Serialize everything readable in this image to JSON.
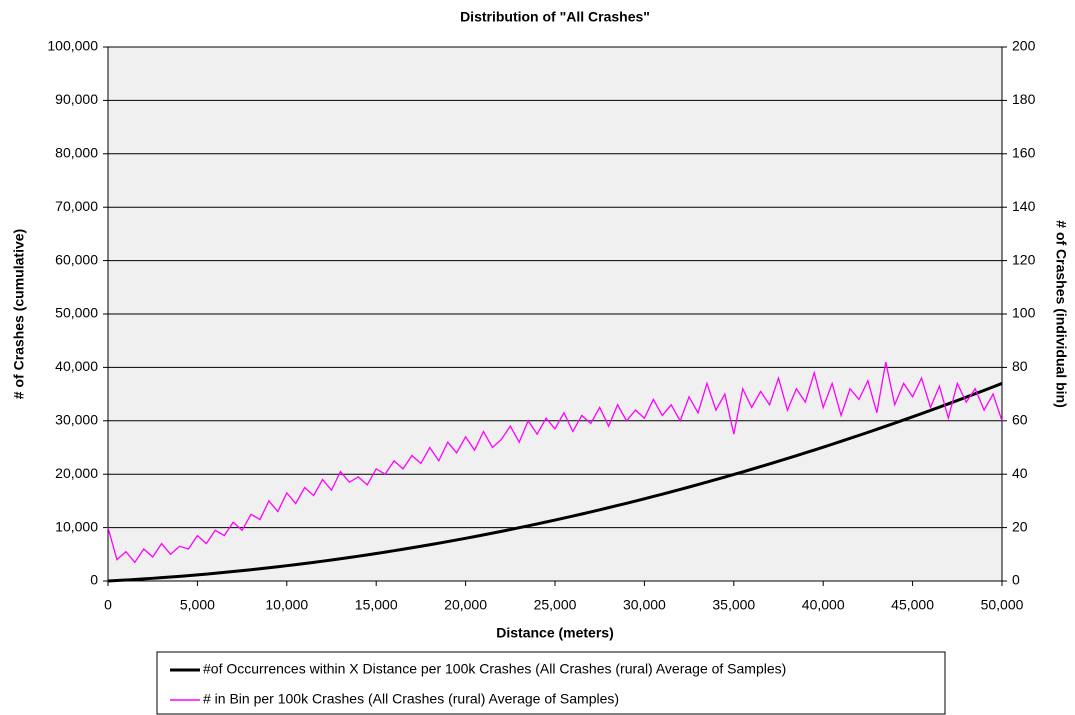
{
  "chart_data": {
    "type": "line",
    "title": "Distribution of \"All Crashes\"",
    "xlabel": "Distance (meters)",
    "ylabel": "# of Crashes (cumulative)",
    "y2label": "# of Crashes (individual bin)",
    "x": [
      0,
      500,
      1000,
      1500,
      2000,
      2500,
      3000,
      3500,
      4000,
      4500,
      5000,
      5500,
      6000,
      6500,
      7000,
      7500,
      8000,
      8500,
      9000,
      9500,
      10000,
      10500,
      11000,
      11500,
      12000,
      12500,
      13000,
      13500,
      14000,
      14500,
      15000,
      15500,
      16000,
      16500,
      17000,
      17500,
      18000,
      18500,
      19000,
      19500,
      20000,
      20500,
      21000,
      21500,
      22000,
      22500,
      23000,
      23500,
      24000,
      24500,
      25000,
      25500,
      26000,
      26500,
      27000,
      27500,
      28000,
      28500,
      29000,
      29500,
      30000,
      30500,
      31000,
      31500,
      32000,
      32500,
      33000,
      33500,
      34000,
      34500,
      35000,
      35500,
      36000,
      36500,
      37000,
      37500,
      38000,
      38500,
      39000,
      39500,
      40000,
      40500,
      41000,
      41500,
      42000,
      42500,
      43000,
      43500,
      44000,
      44500,
      45000,
      45500,
      46000,
      46500,
      47000,
      47500,
      48000,
      48500,
      49000,
      49500,
      50000
    ],
    "series": [
      {
        "name": "#of Occurrences within X Distance per 100k Crashes (All Crashes (rural) Average of Samples)",
        "color": "#000000",
        "values": [
          0,
          90,
          185,
          285,
          392,
          504,
          622,
          745,
          875,
          1010,
          1150,
          1296,
          1448,
          1606,
          1769,
          1938,
          2112,
          2292,
          2478,
          2669,
          2867,
          3069,
          3278,
          3492,
          3712,
          3937,
          4168,
          4405,
          4648,
          4896,
          5150,
          5409,
          5674,
          5945,
          6221,
          6504,
          6791,
          7085,
          7384,
          7689,
          7999,
          8315,
          8637,
          8965,
          9298,
          9637,
          9981,
          10331,
          10687,
          11049,
          11416,
          11789,
          12167,
          12551,
          12941,
          13337,
          13738,
          14145,
          14557,
          14975,
          15399,
          15828,
          16264,
          16704,
          17151,
          17603,
          18061,
          18524,
          18994,
          19468,
          19949,
          20435,
          20927,
          21424,
          21927,
          22436,
          22951,
          23471,
          23997,
          24528,
          25065,
          25608,
          26157,
          26711,
          27271,
          27836,
          28407,
          28984,
          29567,
          30155,
          30748,
          31348,
          31953,
          32564,
          33180,
          33803,
          34430,
          35064,
          35703,
          36348,
          36998
        ]
      },
      {
        "name": "# in Bin per 100k Crashes (All Crashes (rural) Average of Samples)",
        "color": "#ff00ff",
        "axis": "y2",
        "values": [
          20,
          8,
          11,
          7,
          12,
          9,
          14,
          10,
          13,
          12,
          17,
          14,
          19,
          17,
          22,
          19,
          25,
          23,
          30,
          26,
          33,
          29,
          35,
          32,
          38,
          34,
          41,
          37,
          39,
          36,
          42,
          40,
          45,
          42,
          47,
          44,
          50,
          45,
          52,
          48,
          54,
          49,
          56,
          50,
          53,
          58,
          52,
          60,
          55,
          61,
          57,
          63,
          56,
          62,
          59,
          65,
          58,
          66,
          60,
          64,
          61,
          68,
          62,
          66,
          60,
          69,
          63,
          74,
          64,
          70,
          55,
          72,
          65,
          71,
          66,
          76,
          64,
          72,
          67,
          78,
          65,
          74,
          62,
          72,
          68,
          75,
          63,
          82,
          66,
          74,
          69,
          76,
          65,
          73,
          61,
          74,
          67,
          72,
          64,
          70,
          60
        ]
      }
    ],
    "xlim": [
      0,
      50000
    ],
    "xticks": [
      0,
      {
        "value": 5000,
        "label": "5,000"
      },
      {
        "value": 10000,
        "label": "10,000"
      },
      {
        "value": 15000,
        "label": "15,000"
      },
      {
        "value": 20000,
        "label": "20,000"
      },
      {
        "value": 25000,
        "label": "25,000"
      },
      {
        "value": 30000,
        "label": "30,000"
      },
      {
        "value": 35000,
        "label": "35,000"
      },
      {
        "value": 40000,
        "label": "40,000"
      },
      {
        "value": 45000,
        "label": "45,000"
      },
      {
        "value": 50000,
        "label": "50,000"
      }
    ],
    "ylim": [
      0,
      100000
    ],
    "yticks": [
      0,
      {
        "value": 10000,
        "label": "10,000"
      },
      {
        "value": 20000,
        "label": "20,000"
      },
      {
        "value": 30000,
        "label": "30,000"
      },
      {
        "value": 40000,
        "label": "40,000"
      },
      {
        "value": 50000,
        "label": "50,000"
      },
      {
        "value": 60000,
        "label": "60,000"
      },
      {
        "value": 70000,
        "label": "70,000"
      },
      {
        "value": 80000,
        "label": "80,000"
      },
      {
        "value": 90000,
        "label": "90,000"
      },
      {
        "value": 100000,
        "label": "100,000"
      }
    ],
    "y2lim": [
      0,
      200
    ],
    "y2ticks": [
      0,
      20,
      40,
      60,
      80,
      100,
      120,
      140,
      160,
      180,
      200
    ],
    "grid": true,
    "legend": "bottom"
  }
}
